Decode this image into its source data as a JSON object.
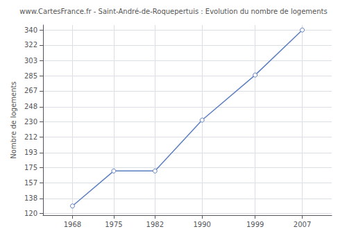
{
  "chart_data": {
    "type": "line",
    "title": "www.CartesFrance.fr - Saint-André-de-Roquepertuis : Evolution du nombre de logements",
    "ylabel": "Nombre de logements",
    "x": [
      1968,
      1975,
      1982,
      1990,
      1999,
      2007
    ],
    "values": [
      129,
      171,
      171,
      232,
      286,
      340
    ],
    "color": "#5b7fbf",
    "marker": "circle",
    "xlim": [
      1963,
      2012
    ],
    "xticks": [
      1968,
      1975,
      1982,
      1990,
      1999,
      2007
    ],
    "ylim": [
      118,
      346
    ],
    "yticks": [
      120,
      138,
      157,
      175,
      193,
      212,
      230,
      248,
      267,
      285,
      303,
      322,
      340
    ],
    "grid": true
  }
}
